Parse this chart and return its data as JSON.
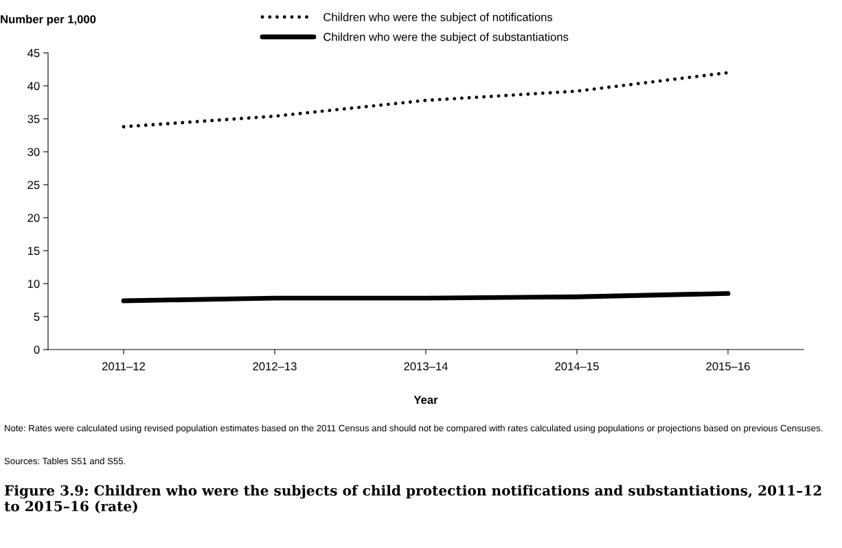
{
  "chart_data": {
    "type": "line",
    "title": "Figure 3.9: Children who were the subjects of child protection notifications and substantiations, 2011–12 to 2015–16 (rate)",
    "xlabel": "Year",
    "ylabel": "Number per 1,000",
    "categories": [
      "2011–12",
      "2012–13",
      "2013–14",
      "2014–15",
      "2015–16"
    ],
    "series": [
      {
        "name": "Children who were the subject of notifications",
        "color": "#000000",
        "line_style": "dotted",
        "values": [
          33.8,
          35.4,
          37.8,
          39.2,
          42.0
        ]
      },
      {
        "name": "Children who were the subject of substantiations",
        "color": "#000000",
        "line_style": "solid",
        "values": [
          7.4,
          7.8,
          7.8,
          8.0,
          8.5
        ]
      }
    ],
    "ylim": [
      0,
      45
    ],
    "yticks": [
      0,
      5,
      10,
      15,
      20,
      25,
      30,
      35,
      40,
      45
    ],
    "grid": false,
    "legend": "top",
    "marker": "none",
    "annotations": [
      "Note: Rates were calculated using revised population estimates based on the 2011 Census and should not be compared with rates calculated using populations or projections based on previous Censuses.",
      "Sources: Tables S51 and S55."
    ]
  }
}
